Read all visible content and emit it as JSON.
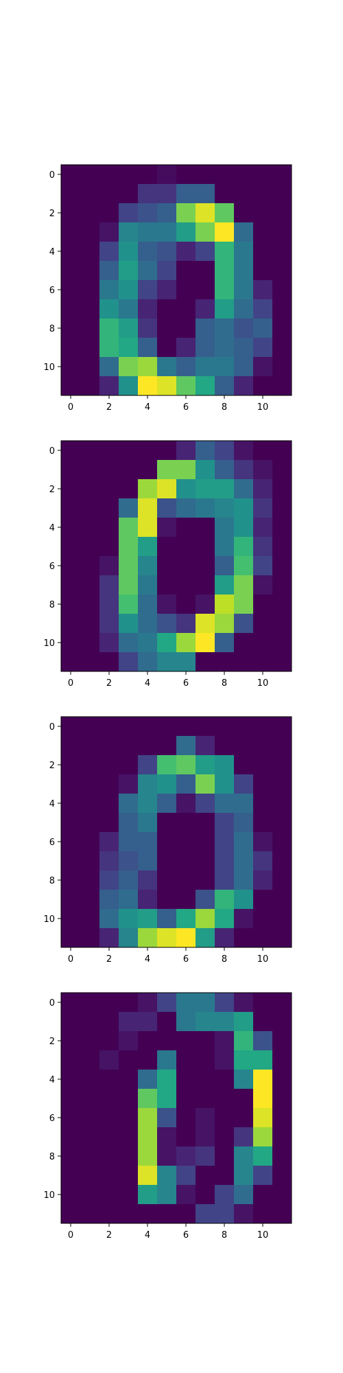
{
  "chart_data": [
    {
      "type": "heatmap",
      "title": "",
      "xlabel": "",
      "ylabel": "",
      "x_ticks": [
        0,
        2,
        4,
        6,
        8,
        10
      ],
      "y_ticks": [
        0,
        2,
        4,
        6,
        8,
        10
      ],
      "xlim": [
        -0.5,
        11.5
      ],
      "ylim": [
        11.5,
        -0.5
      ],
      "colormap": "viridis",
      "value_range": [
        0,
        1
      ],
      "grid": false,
      "values": [
        [
          0,
          0,
          0,
          0,
          0,
          0.03,
          0,
          0,
          0,
          0,
          0,
          0
        ],
        [
          0,
          0,
          0,
          0,
          0.15,
          0.15,
          0.3,
          0.3,
          0,
          0,
          0,
          0
        ],
        [
          0,
          0,
          0,
          0.2,
          0.25,
          0.3,
          0.8,
          0.95,
          0.75,
          0,
          0,
          0
        ],
        [
          0,
          0,
          0.05,
          0.45,
          0.4,
          0.4,
          0.55,
          0.8,
          1.0,
          0.35,
          0,
          0
        ],
        [
          0,
          0,
          0.2,
          0.5,
          0.3,
          0.25,
          0.1,
          0.2,
          0.65,
          0.4,
          0,
          0
        ],
        [
          0,
          0,
          0.3,
          0.55,
          0.35,
          0.2,
          0,
          0,
          0.65,
          0.4,
          0,
          0
        ],
        [
          0,
          0,
          0.4,
          0.5,
          0.2,
          0.1,
          0,
          0,
          0.65,
          0.4,
          0.1,
          0
        ],
        [
          0,
          0,
          0.5,
          0.4,
          0.1,
          0,
          0,
          0.1,
          0.55,
          0.35,
          0.2,
          0
        ],
        [
          0,
          0,
          0.65,
          0.55,
          0.15,
          0,
          0,
          0.3,
          0.35,
          0.25,
          0.3,
          0
        ],
        [
          0,
          0,
          0.65,
          0.6,
          0.3,
          0,
          0.1,
          0.3,
          0.35,
          0.3,
          0.2,
          0
        ],
        [
          0,
          0,
          0.35,
          0.8,
          0.85,
          0.4,
          0.3,
          0.4,
          0.4,
          0.3,
          0.05,
          0
        ],
        [
          0,
          0,
          0.1,
          0.5,
          1.0,
          0.95,
          0.75,
          0.6,
          0.3,
          0.1,
          0,
          0
        ]
      ]
    },
    {
      "type": "heatmap",
      "title": "",
      "xlabel": "",
      "ylabel": "",
      "x_ticks": [
        0,
        2,
        4,
        6,
        8,
        10
      ],
      "y_ticks": [
        0,
        2,
        4,
        6,
        8,
        10
      ],
      "xlim": [
        -0.5,
        11.5
      ],
      "ylim": [
        11.5,
        -0.5
      ],
      "colormap": "viridis",
      "value_range": [
        0,
        1
      ],
      "grid": false,
      "values": [
        [
          0,
          0,
          0,
          0,
          0,
          0,
          0.1,
          0.3,
          0.2,
          0.05,
          0,
          0
        ],
        [
          0,
          0,
          0,
          0,
          0,
          0.8,
          0.8,
          0.5,
          0.3,
          0.15,
          0.05,
          0
        ],
        [
          0,
          0,
          0,
          0,
          0.85,
          0.95,
          0.5,
          0.55,
          0.55,
          0.35,
          0.1,
          0
        ],
        [
          0,
          0,
          0,
          0.35,
          0.95,
          0.25,
          0.35,
          0.4,
          0.45,
          0.5,
          0.15,
          0
        ],
        [
          0,
          0,
          0,
          0.75,
          0.95,
          0.05,
          0,
          0,
          0.4,
          0.5,
          0.1,
          0
        ],
        [
          0,
          0,
          0,
          0.75,
          0.55,
          0,
          0,
          0,
          0.4,
          0.65,
          0.15,
          0
        ],
        [
          0,
          0,
          0.05,
          0.75,
          0.45,
          0,
          0,
          0,
          0.3,
          0.7,
          0.2,
          0
        ],
        [
          0,
          0,
          0.15,
          0.75,
          0.4,
          0,
          0,
          0,
          0.55,
          0.8,
          0.05,
          0
        ],
        [
          0,
          0,
          0.15,
          0.7,
          0.35,
          0.05,
          0,
          0.05,
          0.9,
          0.8,
          0,
          0
        ],
        [
          0,
          0,
          0.15,
          0.5,
          0.35,
          0.25,
          0.15,
          0.95,
          0.85,
          0.25,
          0,
          0
        ],
        [
          0,
          0,
          0.1,
          0.35,
          0.4,
          0.6,
          0.85,
          1.0,
          0.3,
          0,
          0,
          0
        ],
        [
          0,
          0,
          0,
          0.2,
          0.35,
          0.45,
          0.45,
          0,
          0,
          0,
          0,
          0
        ]
      ]
    },
    {
      "type": "heatmap",
      "title": "",
      "xlabel": "",
      "ylabel": "",
      "x_ticks": [
        0,
        2,
        4,
        6,
        8,
        10
      ],
      "y_ticks": [
        0,
        2,
        4,
        6,
        8,
        10
      ],
      "xlim": [
        -0.5,
        11.5
      ],
      "ylim": [
        11.5,
        -0.5
      ],
      "colormap": "viridis",
      "value_range": [
        0,
        1
      ],
      "grid": false,
      "values": [
        [
          0,
          0,
          0,
          0,
          0,
          0,
          0,
          0,
          0,
          0,
          0,
          0
        ],
        [
          0,
          0,
          0,
          0,
          0,
          0,
          0.35,
          0.1,
          0,
          0,
          0,
          0
        ],
        [
          0,
          0,
          0,
          0,
          0.2,
          0.7,
          0.75,
          0.55,
          0.5,
          0,
          0,
          0
        ],
        [
          0,
          0,
          0,
          0.05,
          0.45,
          0.5,
          0.3,
          0.8,
          0.5,
          0.2,
          0,
          0
        ],
        [
          0,
          0,
          0,
          0.35,
          0.45,
          0.3,
          0.05,
          0.2,
          0.35,
          0.35,
          0,
          0
        ],
        [
          0,
          0,
          0,
          0.3,
          0.4,
          0,
          0,
          0,
          0.2,
          0.3,
          0,
          0
        ],
        [
          0,
          0,
          0.1,
          0.3,
          0.3,
          0,
          0,
          0,
          0.2,
          0.35,
          0.05,
          0
        ],
        [
          0,
          0,
          0.15,
          0.25,
          0.3,
          0,
          0,
          0,
          0.2,
          0.35,
          0.15,
          0
        ],
        [
          0,
          0,
          0.2,
          0.3,
          0.15,
          0,
          0,
          0,
          0.2,
          0.35,
          0.1,
          0
        ],
        [
          0,
          0,
          0.3,
          0.35,
          0.1,
          0,
          0,
          0.25,
          0.65,
          0.5,
          0,
          0
        ],
        [
          0,
          0,
          0.35,
          0.5,
          0.55,
          0.3,
          0.6,
          0.85,
          0.6,
          0.05,
          0,
          0
        ],
        [
          0,
          0,
          0.1,
          0.45,
          0.85,
          0.95,
          1.0,
          0.55,
          0.1,
          0,
          0,
          0
        ]
      ]
    },
    {
      "type": "heatmap",
      "title": "",
      "xlabel": "",
      "ylabel": "",
      "x_ticks": [
        0,
        2,
        4,
        6,
        8,
        10
      ],
      "y_ticks": [
        0,
        2,
        4,
        6,
        8,
        10
      ],
      "xlim": [
        -0.5,
        11.5
      ],
      "ylim": [
        11.5,
        -0.5
      ],
      "colormap": "viridis",
      "value_range": [
        0,
        1
      ],
      "grid": false,
      "values": [
        [
          0,
          0,
          0,
          0,
          0.05,
          0.2,
          0.4,
          0.4,
          0.2,
          0.05,
          0,
          0
        ],
        [
          0,
          0,
          0,
          0.1,
          0.1,
          0,
          0.4,
          0.45,
          0.45,
          0.55,
          0,
          0
        ],
        [
          0,
          0,
          0,
          0.05,
          0,
          0,
          0,
          0,
          0.05,
          0.65,
          0.25,
          0
        ],
        [
          0,
          0,
          0.05,
          0,
          0,
          0.4,
          0,
          0,
          0.05,
          0.6,
          0.6,
          0
        ],
        [
          0,
          0,
          0,
          0,
          0.35,
          0.6,
          0,
          0,
          0,
          0.45,
          1.0,
          0
        ],
        [
          0,
          0,
          0,
          0,
          0.75,
          0.6,
          0,
          0,
          0,
          0,
          1.0,
          0
        ],
        [
          0,
          0,
          0,
          0,
          0.85,
          0.25,
          0,
          0.05,
          0,
          0,
          0.95,
          0
        ],
        [
          0,
          0,
          0,
          0,
          0.85,
          0.05,
          0,
          0.05,
          0,
          0.15,
          0.85,
          0
        ],
        [
          0,
          0,
          0,
          0,
          0.85,
          0.05,
          0.1,
          0.15,
          0,
          0.45,
          0.6,
          0
        ],
        [
          0,
          0,
          0,
          0,
          0.95,
          0.45,
          0.2,
          0,
          0,
          0.45,
          0.2,
          0
        ],
        [
          0,
          0,
          0,
          0,
          0.55,
          0.45,
          0.05,
          0,
          0.2,
          0.35,
          0,
          0
        ],
        [
          0,
          0,
          0,
          0,
          0,
          0,
          0,
          0.2,
          0.2,
          0.05,
          0,
          0
        ]
      ]
    }
  ]
}
